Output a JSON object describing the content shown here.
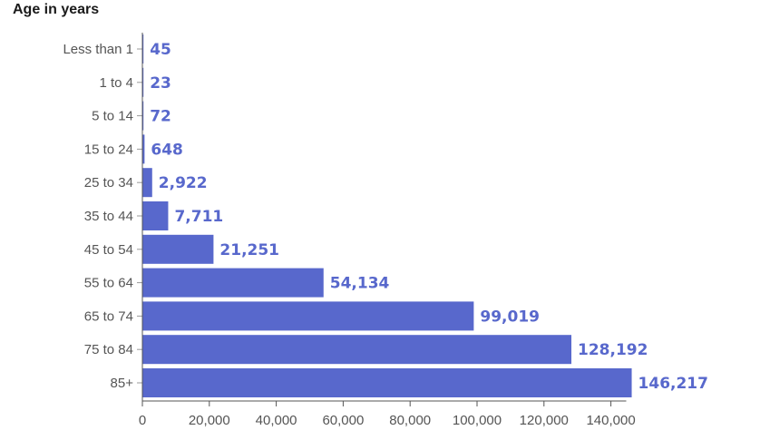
{
  "chart_data": {
    "type": "bar",
    "orientation": "horizontal",
    "title": "Age in years",
    "categories": [
      "Less than 1",
      "1 to 4",
      "5 to 14",
      "15 to 24",
      "25 to 34",
      "35 to 44",
      "45 to 54",
      "55 to 64",
      "65 to 74",
      "75 to 84",
      "85+"
    ],
    "values": [
      45,
      23,
      72,
      648,
      2922,
      7711,
      21251,
      54134,
      99019,
      128192,
      146217
    ],
    "value_labels": [
      "45",
      "23",
      "72",
      "648",
      "2,922",
      "7,711",
      "21,251",
      "54,134",
      "99,019",
      "128,192",
      "146,217"
    ],
    "xlim": [
      0,
      150000
    ],
    "xticks": [
      0,
      20000,
      40000,
      60000,
      80000,
      100000,
      120000,
      140000
    ],
    "xtick_labels": [
      "0",
      "20,000",
      "40,000",
      "60,000",
      "80,000",
      "100,000",
      "120,000",
      "140,000"
    ],
    "grid": false,
    "bar_color": "#5868cc",
    "label_color": "#5868cc"
  }
}
